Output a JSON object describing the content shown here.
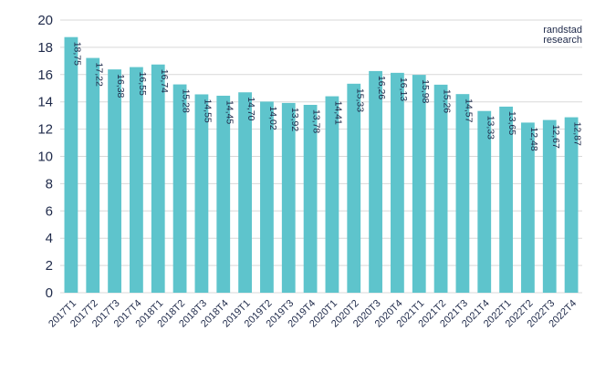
{
  "brand": {
    "line1": "randstad",
    "line2": "research"
  },
  "colors": {
    "bar": "#5ec4cc",
    "grid": "#d9d9d9",
    "axis_text": "#1f2a4a",
    "label_text": "#1f2a4a"
  },
  "chart_data": {
    "type": "bar",
    "title": "",
    "xlabel": "",
    "ylabel": "",
    "ylim": [
      0,
      20
    ],
    "yticks": [
      0,
      2,
      4,
      6,
      8,
      10,
      12,
      14,
      16,
      18,
      20
    ],
    "grid": true,
    "categories": [
      "2017T1",
      "2017T2",
      "2017T3",
      "2017T4",
      "2018T1",
      "2018T2",
      "2018T3",
      "2018T4",
      "2019T1",
      "2019T2",
      "2019T3",
      "2019T4",
      "2020T1",
      "2020T2",
      "2020T3",
      "2020T4",
      "2021T1",
      "2021T2",
      "2021T3",
      "2021T4",
      "2022T1",
      "2022T2",
      "2022T3",
      "2022T4"
    ],
    "values": [
      18.75,
      17.22,
      16.38,
      16.55,
      16.74,
      15.28,
      14.55,
      14.45,
      14.7,
      14.02,
      13.92,
      13.78,
      14.41,
      15.33,
      16.26,
      16.13,
      15.98,
      15.26,
      14.57,
      13.33,
      13.65,
      12.48,
      12.67,
      12.87
    ],
    "data_labels": [
      "18,75",
      "17,22",
      "16,38",
      "16,55",
      "16,74",
      "15,28",
      "14,55",
      "14,45",
      "14,70",
      "14,02",
      "13,92",
      "13,78",
      "14,41",
      "15,33",
      "16,26",
      "16,13",
      "15,98",
      "15,26",
      "14,57",
      "13,33",
      "13,65",
      "12,48",
      "12,67",
      "12,87"
    ]
  }
}
